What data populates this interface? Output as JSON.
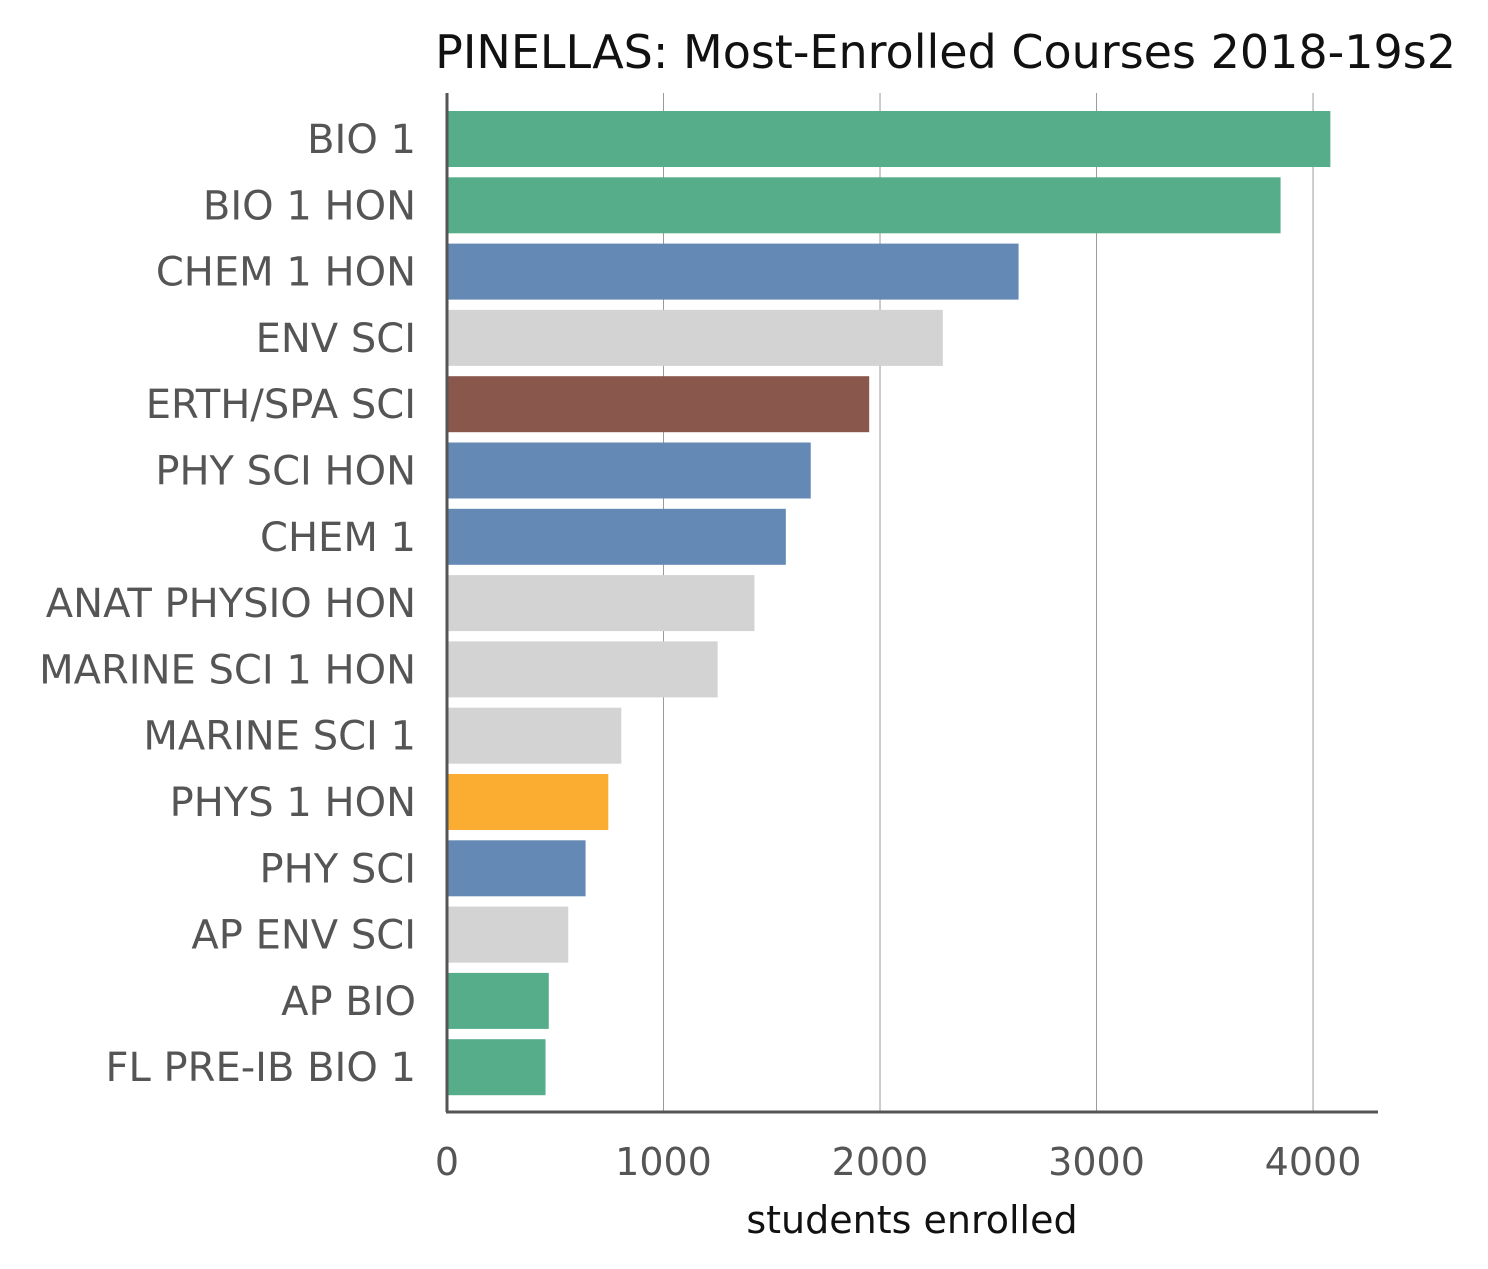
{
  "chart_data": {
    "type": "bar",
    "orientation": "horizontal",
    "title": "PINELLAS: Most-Enrolled Courses 2018-19s2",
    "xlabel": "students enrolled",
    "ylabel": "",
    "xlim": [
      0,
      4300
    ],
    "xticks": [
      0,
      1000,
      2000,
      3000,
      4000
    ],
    "grid": "vertical",
    "legend": "none",
    "categories": [
      "BIO 1",
      "BIO 1 HON",
      "CHEM 1 HON",
      "ENV SCI",
      "ERTH/SPA SCI",
      "PHY SCI HON",
      "CHEM 1",
      "ANAT PHYSIO HON",
      "MARINE SCI 1 HON",
      "MARINE SCI 1",
      "PHYS 1 HON",
      "PHY SCI",
      "AP ENV SCI",
      "AP BIO",
      "FL PRE-IB BIO 1"
    ],
    "values": [
      4080,
      3850,
      2640,
      2290,
      1950,
      1680,
      1565,
      1420,
      1250,
      805,
      745,
      640,
      560,
      470,
      455
    ],
    "colors": [
      "#56ad8a",
      "#56ad8a",
      "#6389b4",
      "#d3d3d3",
      "#8a574c",
      "#6389b4",
      "#6389b4",
      "#d3d3d3",
      "#d3d3d3",
      "#d3d3d3",
      "#fbad32",
      "#6389b4",
      "#d3d3d3",
      "#56ad8a",
      "#56ad8a"
    ]
  }
}
